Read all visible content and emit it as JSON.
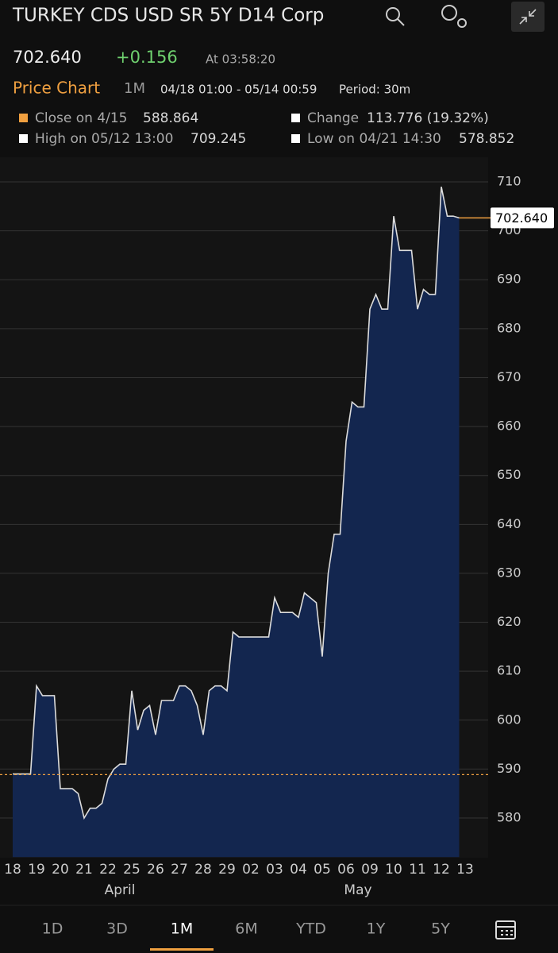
{
  "header": {
    "title": "TURKEY CDS USD SR 5Y D14 Corp",
    "price": "702.640",
    "change": "+0.156",
    "time": "At 03:58:20"
  },
  "subheader": {
    "label": "Price Chart",
    "range": "1M",
    "dates": "04/18 01:00 - 05/14 00:59",
    "period": "Period: 30m"
  },
  "legend": {
    "close_label": "Close on 4/15",
    "close_value": 588.864,
    "change_label": "Change",
    "change_value": "113.776 (19.32%)",
    "high_label": "High on 05/12 13:00",
    "high_value": 709.245,
    "low_label": "Low on 04/21 14:30",
    "low_value": 578.852
  },
  "chart_data": {
    "type": "area",
    "color": "#dcdcdc",
    "fill": "#13264f",
    "grid": true,
    "categories": [
      "18",
      null,
      null,
      null,
      "19",
      null,
      null,
      null,
      "20",
      null,
      null,
      null,
      "21",
      null,
      null,
      null,
      "22",
      null,
      null,
      null,
      "25",
      null,
      null,
      null,
      "26",
      null,
      null,
      null,
      "27",
      null,
      null,
      null,
      "28",
      null,
      null,
      null,
      "29",
      null,
      null,
      null,
      "02",
      null,
      null,
      null,
      "03",
      null,
      null,
      null,
      "04",
      null,
      null,
      null,
      "05",
      null,
      null,
      null,
      "06",
      null,
      null,
      null,
      "09",
      null,
      null,
      null,
      "10",
      null,
      null,
      null,
      "11",
      null,
      null,
      null,
      "12",
      null,
      null,
      null,
      "13"
    ],
    "values": [
      589,
      589,
      589,
      589,
      607,
      605,
      605,
      605,
      586,
      586,
      586,
      585,
      580,
      582,
      582,
      583,
      588,
      590,
      591,
      591,
      606,
      598,
      602,
      603,
      597,
      604,
      604,
      604,
      607,
      607,
      606,
      603,
      597,
      606,
      607,
      607,
      606,
      618,
      617,
      617,
      617,
      617,
      617,
      617,
      625,
      622,
      622,
      622,
      621,
      626,
      625,
      624,
      613,
      630,
      638,
      638,
      657,
      665,
      664,
      664,
      684,
      687,
      684,
      684,
      703,
      696,
      696,
      696,
      684,
      688,
      687,
      687,
      709,
      703,
      703,
      702.64,
      null
    ],
    "ylim": [
      572,
      715
    ],
    "yticks": [
      580,
      590,
      600,
      610,
      620,
      630,
      640,
      650,
      660,
      670,
      680,
      690,
      700,
      710
    ],
    "last_label": "702.640",
    "months": [
      "April",
      "May"
    ]
  },
  "tabs": [
    "1D",
    "3D",
    "1M",
    "6M",
    "YTD",
    "1Y",
    "5Y"
  ]
}
